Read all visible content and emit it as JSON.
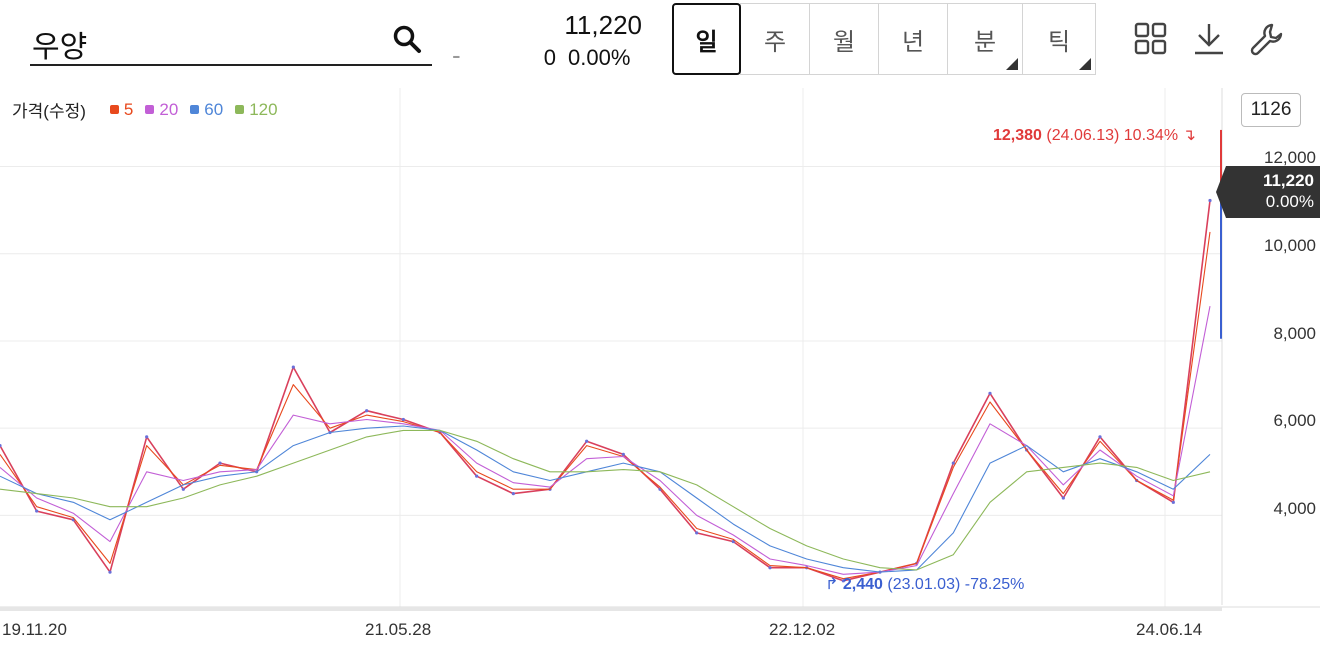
{
  "search": {
    "value": "우양"
  },
  "quote": {
    "price": "11,220",
    "change": "0",
    "change_pct": "0.00%",
    "dash": "-"
  },
  "periods": [
    {
      "label": "일",
      "active": true,
      "corner": false
    },
    {
      "label": "주",
      "active": false,
      "corner": false
    },
    {
      "label": "월",
      "active": false,
      "corner": false
    },
    {
      "label": "년",
      "active": false,
      "corner": false
    },
    {
      "label": "분",
      "active": false,
      "corner": true
    },
    {
      "label": "틱",
      "active": false,
      "corner": true
    }
  ],
  "tools": [
    "layout-grid-icon",
    "download-icon",
    "wrench-icon"
  ],
  "legend": {
    "title": "가격(수정)",
    "items": [
      {
        "label": "5",
        "color": "#e8491d"
      },
      {
        "label": "20",
        "color": "#c25fd6"
      },
      {
        "label": "60",
        "color": "#4f86d8"
      },
      {
        "label": "120",
        "color": "#8db85a"
      }
    ]
  },
  "zoom_count": "1126",
  "current_tag": {
    "price": "11,220",
    "pct": "0.00%"
  },
  "high_marker": {
    "price": "12,380",
    "detail": "(24.06.13) 10.34%"
  },
  "low_marker": {
    "price": "2,440",
    "detail": "(23.01.03) -78.25%"
  },
  "chart_data": {
    "type": "line",
    "x": [
      "19.11",
      "20.01",
      "20.03",
      "20.04",
      "20.06",
      "20.08",
      "20.09",
      "20.11",
      "21.01",
      "21.02",
      "21.04",
      "21.05",
      "21.07",
      "21.09",
      "21.10",
      "21.12",
      "22.02",
      "22.04",
      "22.05",
      "22.07",
      "22.09",
      "22.10",
      "22.12",
      "23.01",
      "23.03",
      "23.05",
      "23.06",
      "23.08",
      "23.10",
      "23.11",
      "24.01",
      "24.03",
      "24.05",
      "24.06"
    ],
    "series": [
      {
        "name": "가격(수정)",
        "values": [
          5600,
          4100,
          3900,
          2700,
          5800,
          4600,
          5200,
          5000,
          7400,
          5900,
          6400,
          6200,
          5900,
          4900,
          4500,
          4600,
          5700,
          5400,
          4600,
          3600,
          3400,
          2800,
          2800,
          2500,
          2700,
          2900,
          5200,
          6800,
          5500,
          4400,
          5800,
          4800,
          4300,
          11220
        ]
      },
      {
        "name": "5",
        "values": [
          5400,
          4200,
          3950,
          2900,
          5600,
          4700,
          5150,
          5050,
          7000,
          6000,
          6300,
          6150,
          5900,
          5000,
          4600,
          4600,
          5600,
          5350,
          4650,
          3700,
          3450,
          2850,
          2800,
          2550,
          2700,
          2900,
          5100,
          6600,
          5500,
          4500,
          5700,
          4800,
          4350,
          10500
        ]
      },
      {
        "name": "20",
        "values": [
          5100,
          4400,
          4050,
          3400,
          5000,
          4800,
          5000,
          5050,
          6300,
          6100,
          6200,
          6100,
          5950,
          5200,
          4750,
          4650,
          5300,
          5350,
          4800,
          4000,
          3550,
          3000,
          2850,
          2650,
          2700,
          2850,
          4500,
          6100,
          5600,
          4700,
          5500,
          4900,
          4450,
          8800
        ]
      },
      {
        "name": "60",
        "values": [
          4900,
          4500,
          4300,
          3900,
          4300,
          4700,
          4900,
          5000,
          5600,
          5900,
          6000,
          6050,
          5950,
          5500,
          5000,
          4800,
          5000,
          5200,
          5000,
          4400,
          3800,
          3300,
          3000,
          2800,
          2700,
          2750,
          3600,
          5200,
          5600,
          5000,
          5300,
          5000,
          4600,
          5400
        ]
      },
      {
        "name": "120",
        "values": [
          4600,
          4500,
          4400,
          4200,
          4200,
          4400,
          4700,
          4900,
          5200,
          5500,
          5800,
          5950,
          5950,
          5700,
          5300,
          5000,
          5000,
          5050,
          5000,
          4700,
          4200,
          3700,
          3300,
          3000,
          2800,
          2750,
          3100,
          4300,
          5000,
          5100,
          5200,
          5100,
          4800,
          5000
        ]
      }
    ],
    "xlabels": [
      "19.11.20",
      "21.05.28",
      "22.12.02",
      "24.06.14"
    ],
    "yticks": [
      "12,000",
      "10,000",
      "8,000",
      "6,000",
      "4,000"
    ],
    "ylim": [
      1900,
      13800
    ],
    "grid": true
  }
}
